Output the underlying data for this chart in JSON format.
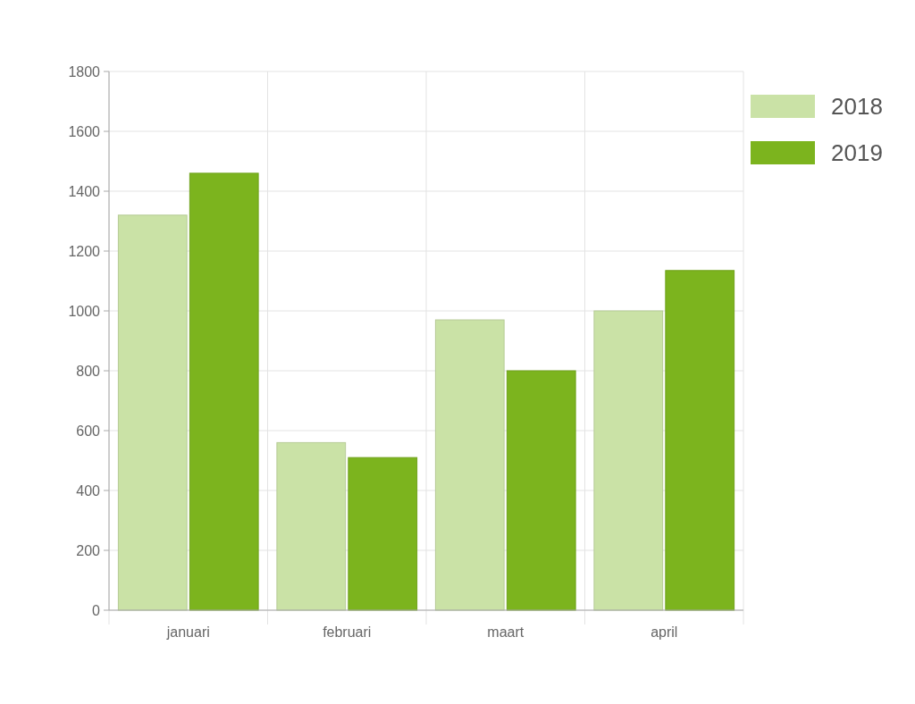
{
  "chart_data": {
    "type": "bar",
    "categories": [
      "januari",
      "februari",
      "maart",
      "april"
    ],
    "series": [
      {
        "name": "2018",
        "color": "#cae2a6",
        "values": [
          1320,
          560,
          970,
          1000
        ]
      },
      {
        "name": "2019",
        "color": "#7cb41e",
        "values": [
          1460,
          510,
          800,
          1135
        ]
      }
    ],
    "ylim": [
      0,
      1800
    ],
    "yticks": [
      0,
      200,
      400,
      600,
      800,
      1000,
      1200,
      1400,
      1600,
      1800
    ],
    "grid": true,
    "legend": "top right"
  }
}
